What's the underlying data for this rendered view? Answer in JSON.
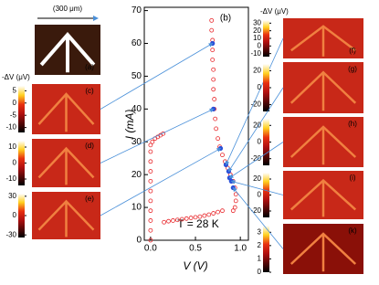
{
  "chart_data": {
    "type": "scatter",
    "panel_label": "(b)",
    "x_label": "V (V)",
    "y_label": "I (mA)",
    "annotation": "T = 28 K",
    "xlim": [
      -0.07,
      1.09
    ],
    "ylim": [
      0,
      71
    ],
    "xticks": [
      {
        "value": 0,
        "label": "0.0"
      },
      {
        "value": 0.5,
        "label": "0.5"
      },
      {
        "value": 1,
        "label": "1.0"
      }
    ],
    "yticks": [
      0,
      10,
      20,
      30,
      40,
      50,
      60,
      70
    ],
    "grid": false,
    "series": [
      {
        "color": "#e8262a",
        "marker": "open-circle",
        "x": [
          0,
          0,
          0,
          0,
          0,
          0,
          0,
          0,
          0,
          0,
          0,
          0.02,
          0.05,
          0.08,
          0.11,
          0.14,
          0.15,
          0.2,
          0.25,
          0.3,
          0.35,
          0.4,
          0.45,
          0.5,
          0.55,
          0.6,
          0.65,
          0.7,
          0.75,
          0.8,
          0.68,
          0.68,
          0.69,
          0.69,
          0.69,
          0.7,
          0.7,
          0.7,
          0.71,
          0.71,
          0.72,
          0.73,
          0.75,
          0.77,
          0.8,
          0.83,
          0.86,
          0.89,
          0.92,
          0.94,
          0.95,
          0.95,
          0.94,
          0.92
        ],
        "y": [
          0,
          3,
          6,
          9,
          12,
          15,
          18,
          21,
          24,
          27,
          29,
          30,
          31,
          31.5,
          32,
          32.5,
          5.5,
          5.8,
          6,
          6.2,
          6.4,
          6.6,
          6.8,
          7,
          7.2,
          7.5,
          7.8,
          8.2,
          8.6,
          9,
          67,
          64,
          61,
          58,
          55,
          52,
          49,
          46,
          43,
          40,
          37,
          34,
          31,
          28.5,
          26,
          24,
          22,
          20,
          18,
          16,
          14,
          12,
          10,
          9
        ]
      },
      {
        "color": "#2a50d8",
        "marker": "filled-circle",
        "x": [
          0.69,
          0.7,
          0.78,
          0.84,
          0.87,
          0.88,
          0.9,
          0.92
        ],
        "y": [
          60,
          40,
          28,
          23,
          21,
          19,
          18,
          16
        ]
      }
    ]
  },
  "panels": [
    {
      "label": "(a)",
      "scale_label": "(300 μm)"
    },
    {
      "label": "(c)",
      "unit_label": "-ΔV (μV)",
      "cbar_lim": [
        -12,
        7
      ],
      "cbar_ticks": [
        5,
        0,
        -5,
        -10
      ]
    },
    {
      "label": "(d)",
      "cbar_lim": [
        -14,
        14
      ],
      "cbar_ticks": [
        10,
        0,
        -10
      ]
    },
    {
      "label": "(e)",
      "cbar_lim": [
        -34,
        34
      ],
      "cbar_ticks": [
        30,
        0,
        -30
      ]
    },
    {
      "label": "(f)",
      "unit_label": "-ΔV (μV)",
      "cbar_lim": [
        -14,
        34
      ],
      "cbar_ticks": [
        30,
        20,
        10,
        0,
        -10
      ]
    },
    {
      "label": "(g)",
      "cbar_lim": [
        -28,
        28
      ],
      "cbar_ticks": [
        20,
        0,
        -20
      ]
    },
    {
      "label": "(h)",
      "cbar_lim": [
        -28,
        28
      ],
      "cbar_ticks": [
        20,
        0,
        -20
      ]
    },
    {
      "label": "(i)",
      "cbar_lim": [
        -28,
        28
      ],
      "cbar_ticks": [
        20,
        0,
        -20
      ]
    },
    {
      "label": "(k)",
      "cbar_lim": [
        0,
        3.5
      ],
      "cbar_ticks": [
        3,
        2,
        1,
        0
      ]
    }
  ]
}
